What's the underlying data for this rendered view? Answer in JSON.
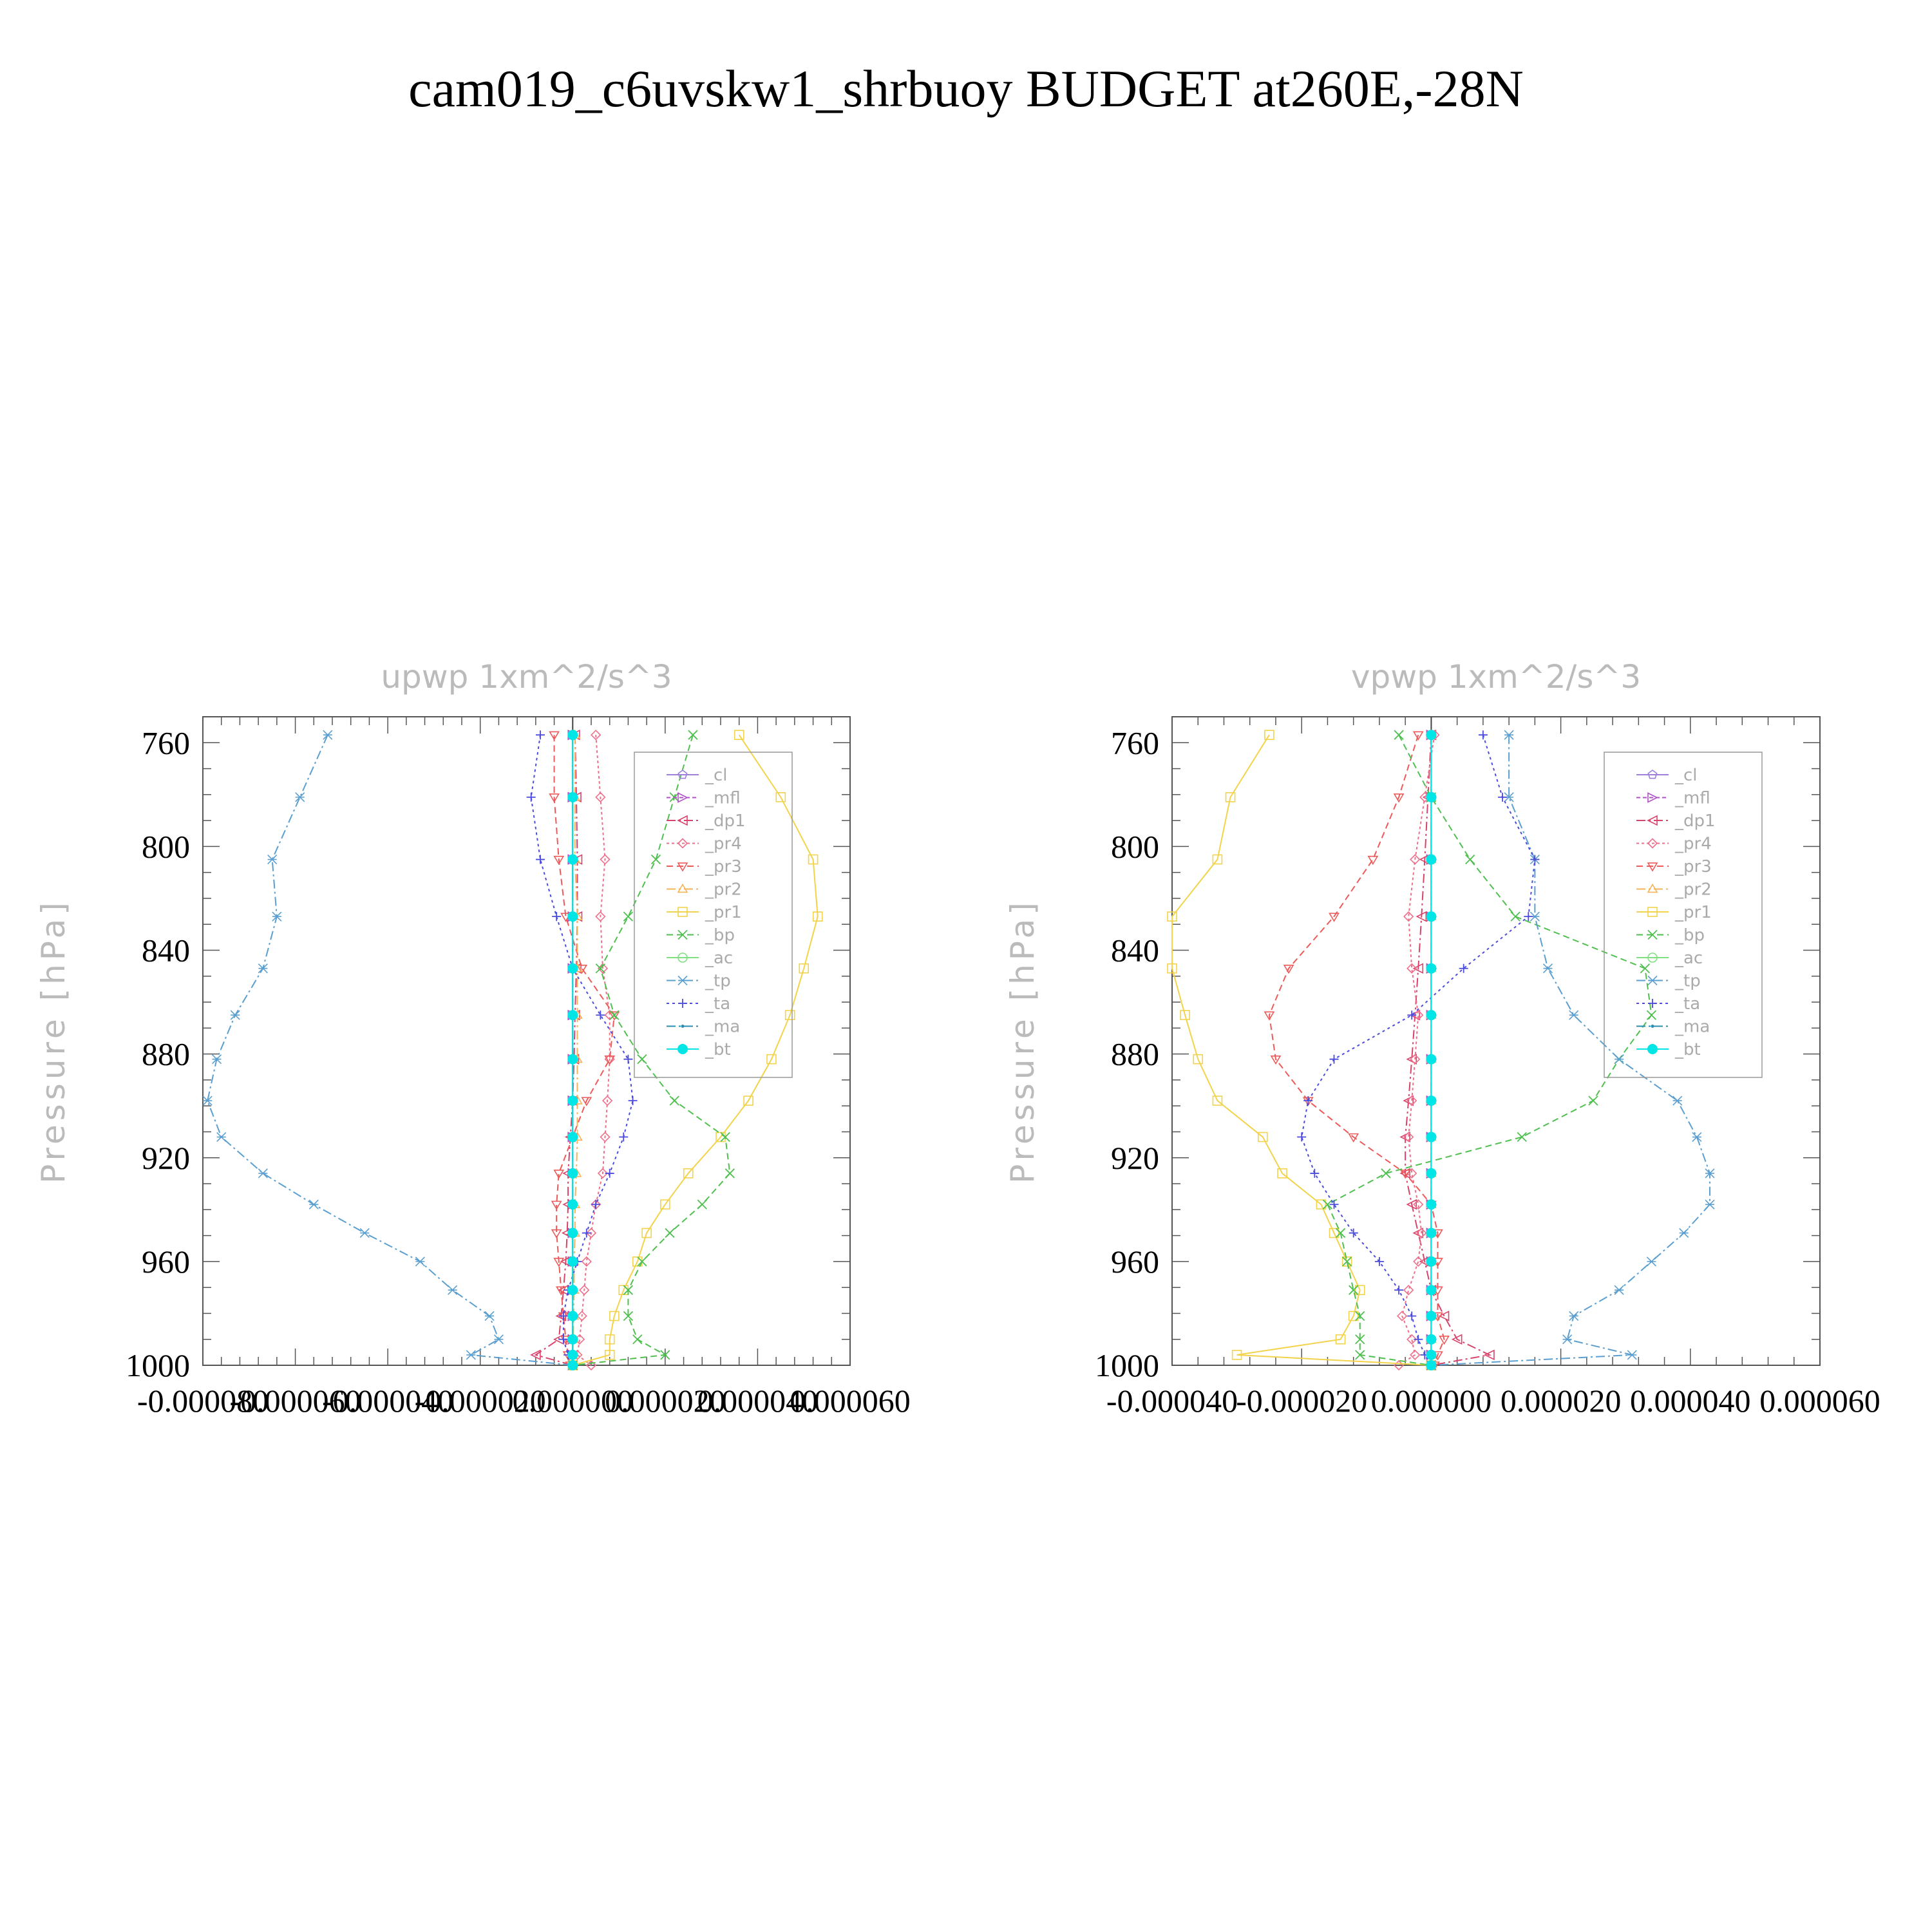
{
  "figure": {
    "title": "cam019_c6uvskw1_shrbuoy  BUDGET at260E,-28N"
  },
  "colors": {
    "_cl": "#9b7fd9",
    "_mfl": "#b04fc8",
    "_dp1": "#d8436b",
    "_pr4": "#ee6f8a",
    "_pr3": "#ee5a5a",
    "_pr2": "#f5b35a",
    "_pr1": "#f2d34a",
    "_bp": "#4fc04f",
    "_ac": "#7fe07f",
    "_tp": "#5a9fd0",
    "_ta": "#4b4bdd",
    "_ma": "#2a8fb0",
    "_bt": "#00e5e5"
  },
  "chart_data": [
    {
      "type": "line",
      "title": "upwp   1xm^2/s^3",
      "ylabel": "Pressure [hPa]",
      "xlabel": "",
      "xlim": [
        -8e-05,
        6e-05
      ],
      "ylim": [
        1000,
        750
      ],
      "x_ticks": [
        "-0.000080",
        "-0.000060",
        "-0.000040",
        "-0.000020",
        "0.000000",
        "0.000020",
        "0.000040",
        "0.000060"
      ],
      "x_tick_values": [
        -8e-05,
        -6e-05,
        -4e-05,
        -2e-05,
        0,
        2e-05,
        4e-05,
        6e-05
      ],
      "y_ticks": [
        "760",
        "800",
        "840",
        "880",
        "920",
        "960",
        "1000"
      ],
      "y_tick_values": [
        760,
        800,
        840,
        880,
        920,
        960,
        1000
      ],
      "legend": {
        "position": "top-right",
        "entries": [
          "_cl",
          "_mfl",
          "_dp1",
          "_pr4",
          "_pr3",
          "_pr2",
          "_pr1",
          "_bp",
          "_ac",
          "_tp",
          "_ta",
          "_ma",
          "_bt"
        ]
      },
      "y": [
        757,
        781,
        805,
        827,
        847,
        865,
        882,
        898,
        912,
        926,
        938,
        949,
        960,
        971,
        981,
        990,
        996,
        1000
      ],
      "series": [
        {
          "name": "_cl",
          "x": [
            0,
            0,
            0,
            0,
            0,
            0,
            0,
            0,
            0,
            0,
            0,
            0,
            0,
            0,
            0,
            0,
            0,
            0
          ]
        },
        {
          "name": "_mfl",
          "x": [
            0,
            0,
            0,
            0,
            0,
            0,
            0,
            0,
            0,
            0,
            0,
            0,
            0,
            0,
            0,
            0,
            0,
            0
          ]
        },
        {
          "name": "_dp1",
          "x": [
            5e-07,
            8e-07,
            1e-06,
            1e-06,
            8e-07,
            5e-07,
            3e-07,
            0,
            -5e-07,
            -1e-06,
            -1e-06,
            -1.2e-06,
            -1.5e-06,
            -2e-06,
            -2.5e-06,
            -3e-06,
            -8e-06,
            0
          ]
        },
        {
          "name": "_pr4",
          "x": [
            5e-06,
            6e-06,
            7e-06,
            6e-06,
            6.5e-06,
            8e-06,
            8e-06,
            7.5e-06,
            7e-06,
            6.5e-06,
            5e-06,
            4e-06,
            3e-06,
            2.5e-06,
            2e-06,
            1.5e-06,
            1e-06,
            4e-06
          ]
        },
        {
          "name": "_pr3",
          "x": [
            -4e-06,
            -4e-06,
            -3e-06,
            -1.5e-06,
            2e-06,
            9e-06,
            8e-06,
            3e-06,
            0,
            -3e-06,
            -3.5e-06,
            -3.5e-06,
            -3e-06,
            -2.5e-06,
            -2e-06,
            -1.5e-06,
            -1e-06,
            -5e-07
          ]
        },
        {
          "name": "_pr2",
          "x": [
            5e-07,
            5e-07,
            5e-07,
            1e-06,
            1e-06,
            1e-06,
            1e-06,
            1e-06,
            1e-06,
            8e-07,
            5e-07,
            5e-07,
            3e-07,
            3e-07,
            2e-07,
            1e-07,
            0,
            0
          ]
        },
        {
          "name": "_pr1",
          "x": [
            3.6e-05,
            4.5e-05,
            5.2e-05,
            5.3e-05,
            5e-05,
            4.7e-05,
            4.3e-05,
            3.8e-05,
            3.2e-05,
            2.5e-05,
            2e-05,
            1.6e-05,
            1.4e-05,
            1.1e-05,
            9e-06,
            8e-06,
            8e-06,
            0
          ]
        },
        {
          "name": "_bp",
          "x": [
            2.6e-05,
            2.2e-05,
            1.8e-05,
            1.2e-05,
            6e-06,
            9e-06,
            1.5e-05,
            2.2e-05,
            3.3e-05,
            3.4e-05,
            2.8e-05,
            2.1e-05,
            1.5e-05,
            1.2e-05,
            1.2e-05,
            1.4e-05,
            2e-05,
            0
          ]
        },
        {
          "name": "_ac",
          "x": [
            0,
            0,
            0,
            0,
            0,
            0,
            0,
            0,
            0,
            0,
            0,
            0,
            0,
            0,
            0,
            0,
            0,
            0
          ]
        },
        {
          "name": "_tp",
          "x": [
            -5.3e-05,
            -5.9e-05,
            -6.5e-05,
            -6.4e-05,
            -6.7e-05,
            -7.3e-05,
            -7.7e-05,
            -7.9e-05,
            -7.6e-05,
            -6.7e-05,
            -5.6e-05,
            -4.5e-05,
            -3.3e-05,
            -2.6e-05,
            -1.8e-05,
            -1.6e-05,
            -2.2e-05,
            0
          ]
        },
        {
          "name": "_ta",
          "x": [
            -7e-06,
            -9e-06,
            -7e-06,
            -3.5e-06,
            0,
            6e-06,
            1.2e-05,
            1.3e-05,
            1.1e-05,
            8e-06,
            5e-06,
            3e-06,
            1e-06,
            -1e-06,
            -2e-06,
            -2e-06,
            -1e-06,
            0
          ]
        },
        {
          "name": "_ma",
          "x": [
            0,
            0,
            0,
            0,
            0,
            0,
            0,
            0,
            0,
            0,
            0,
            0,
            0,
            0,
            0,
            0,
            0,
            0
          ]
        },
        {
          "name": "_bt",
          "x": [
            0,
            0,
            0,
            0,
            0,
            0,
            0,
            0,
            0,
            0,
            0,
            0,
            0,
            0,
            0,
            0,
            0,
            0
          ]
        }
      ]
    },
    {
      "type": "line",
      "title": "vpwp   1xm^2/s^3",
      "ylabel": "Pressure [hPa]",
      "xlabel": "",
      "xlim": [
        -4e-05,
        6e-05
      ],
      "ylim": [
        1000,
        750
      ],
      "x_ticks": [
        "-0.000040",
        "-0.000020",
        "0.000000",
        "0.000020",
        "0.000040",
        "0.000060"
      ],
      "x_tick_values": [
        -4e-05,
        -2e-05,
        0,
        2e-05,
        4e-05,
        6e-05
      ],
      "y_ticks": [
        "760",
        "800",
        "840",
        "880",
        "920",
        "960",
        "1000"
      ],
      "y_tick_values": [
        760,
        800,
        840,
        880,
        920,
        960,
        1000
      ],
      "legend": {
        "position": "top-right",
        "entries": [
          "_cl",
          "_mfl",
          "_dp1",
          "_pr4",
          "_pr3",
          "_pr2",
          "_pr1",
          "_bp",
          "_ac",
          "_tp",
          "_ta",
          "_ma",
          "_bt"
        ]
      },
      "y": [
        757,
        781,
        805,
        827,
        847,
        865,
        882,
        898,
        912,
        926,
        938,
        949,
        960,
        971,
        981,
        990,
        996,
        1000
      ],
      "series": [
        {
          "name": "_cl",
          "x": [
            0,
            0,
            0,
            0,
            0,
            0,
            0,
            0,
            0,
            0,
            0,
            0,
            0,
            0,
            0,
            0,
            0,
            0
          ]
        },
        {
          "name": "_mfl",
          "x": [
            0,
            0,
            0,
            0,
            0,
            0,
            0,
            0,
            0,
            0,
            0,
            0,
            0,
            0,
            0,
            0,
            0,
            0
          ]
        },
        {
          "name": "_dp1",
          "x": [
            0,
            -5e-07,
            -1e-06,
            -1.5e-06,
            -2e-06,
            -2.5e-06,
            -3e-06,
            -3.5e-06,
            -4e-06,
            -4e-06,
            -3e-06,
            -2e-06,
            -1e-06,
            0,
            2e-06,
            4e-06,
            9e-06,
            0
          ]
        },
        {
          "name": "_pr4",
          "x": [
            5e-07,
            -1e-06,
            -2.5e-06,
            -3.5e-06,
            -3e-06,
            -2e-06,
            -2.5e-06,
            -3e-06,
            -3.5e-06,
            -3e-06,
            -2e-06,
            -1.5e-06,
            -2e-06,
            -3.5e-06,
            -4.5e-06,
            -3e-06,
            -2.5e-06,
            -5e-06
          ]
        },
        {
          "name": "_pr3",
          "x": [
            -2e-06,
            -5e-06,
            -9e-06,
            -1.5e-05,
            -2.2e-05,
            -2.5e-05,
            -2.4e-05,
            -1.9e-05,
            -1.2e-05,
            -4e-06,
            0,
            1e-06,
            1e-06,
            1e-06,
            1e-06,
            2e-06,
            1e-06,
            5e-07
          ]
        },
        {
          "name": "_pr2",
          "x": [
            0,
            0,
            0,
            0,
            0,
            0,
            0,
            0,
            0,
            0,
            0,
            0,
            0,
            0,
            0,
            0,
            0,
            0
          ]
        },
        {
          "name": "_pr1",
          "x": [
            -2.5e-05,
            -3.1e-05,
            -3.3e-05,
            -4e-05,
            -4e-05,
            -3.8e-05,
            -3.6e-05,
            -3.3e-05,
            -2.6e-05,
            -2.3e-05,
            -1.7e-05,
            -1.5e-05,
            -1.3e-05,
            -1.1e-05,
            -1.2e-05,
            -1.4e-05,
            -3e-05,
            0
          ]
        },
        {
          "name": "_bp",
          "x": [
            -5e-06,
            0,
            6e-06,
            1.3e-05,
            3.3e-05,
            3.4e-05,
            2.9e-05,
            2.5e-05,
            1.4e-05,
            -7e-06,
            -1.6e-05,
            -1.4e-05,
            -1.3e-05,
            -1.2e-05,
            -1.1e-05,
            -1.1e-05,
            -1.1e-05,
            0
          ]
        },
        {
          "name": "_ac",
          "x": [
            0,
            0,
            0,
            0,
            0,
            0,
            0,
            0,
            0,
            0,
            0,
            0,
            0,
            0,
            0,
            0,
            0,
            0
          ]
        },
        {
          "name": "_tp",
          "x": [
            1.2e-05,
            1.2e-05,
            1.6e-05,
            1.6e-05,
            1.8e-05,
            2.2e-05,
            2.9e-05,
            3.8e-05,
            4.1e-05,
            4.3e-05,
            4.3e-05,
            3.9e-05,
            3.4e-05,
            2.9e-05,
            2.2e-05,
            2.1e-05,
            3.1e-05,
            0
          ]
        },
        {
          "name": "_ta",
          "x": [
            8e-06,
            1.1e-05,
            1.6e-05,
            1.5e-05,
            5e-06,
            -3e-06,
            -1.5e-05,
            -1.9e-05,
            -2e-05,
            -1.8e-05,
            -1.5e-05,
            -1.2e-05,
            -8e-06,
            -5e-06,
            -3e-06,
            -2e-06,
            -1e-06,
            0
          ]
        },
        {
          "name": "_ma",
          "x": [
            0,
            0,
            0,
            0,
            0,
            0,
            0,
            0,
            0,
            0,
            0,
            0,
            0,
            0,
            0,
            0,
            0,
            0
          ]
        },
        {
          "name": "_bt",
          "x": [
            0,
            0,
            0,
            0,
            0,
            0,
            0,
            0,
            0,
            0,
            0,
            0,
            0,
            0,
            0,
            0,
            0,
            0
          ]
        }
      ]
    }
  ]
}
